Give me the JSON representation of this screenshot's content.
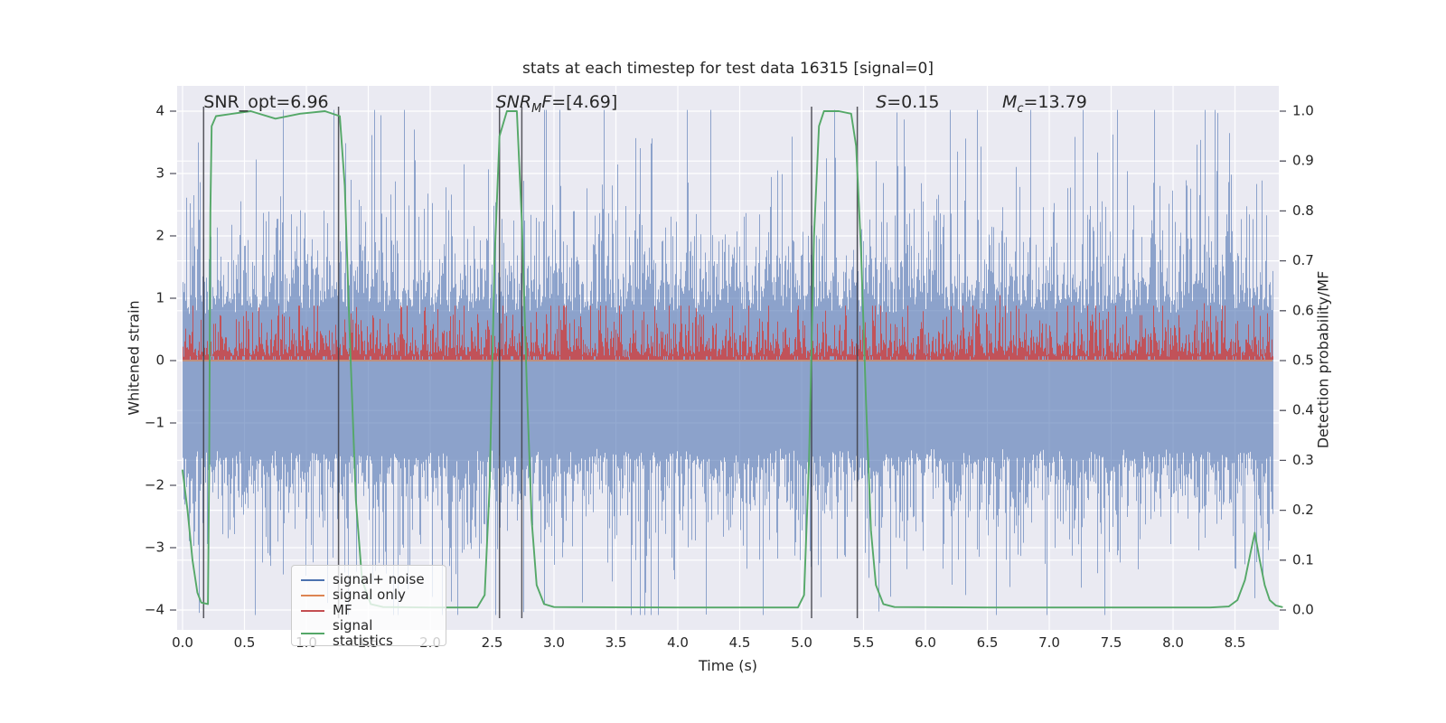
{
  "title": "stats at each timestep for test data 16315 [signal=0]",
  "stats": {
    "SNR_opt": 6.96,
    "SNR_MF": [
      4.69
    ],
    "S": 0.15,
    "M_c": 13.79
  },
  "chart_data": {
    "type": "line",
    "title": "stats at each timestep for test data 16315 [signal=0]",
    "xlabel": "Time (s)",
    "ylabel_left": "Whitened strain",
    "ylabel_right": "Detection probability/MF",
    "xlim": [
      0,
      8.85
    ],
    "ylim_left": [
      -4.35,
      4.35
    ],
    "ylim_right": [
      -0.05,
      1.05
    ],
    "xticks": [
      0.0,
      0.5,
      1.0,
      1.5,
      2.0,
      2.5,
      3.0,
      3.5,
      4.0,
      4.5,
      5.0,
      5.5,
      6.0,
      6.5,
      7.0,
      7.5,
      8.0,
      8.5
    ],
    "yticks_left": [
      4,
      3,
      2,
      1,
      0,
      -1,
      -2,
      -3,
      -4
    ],
    "yticks_right": [
      1.0,
      0.9,
      0.8,
      0.7,
      0.6,
      0.5,
      0.4,
      0.3,
      0.2,
      0.1,
      0.0
    ],
    "grid": true,
    "colors": {
      "axes_bg": "#eaeaf2",
      "grid": "#ffffff",
      "tick": "#555560",
      "text": "#262626"
    },
    "series": [
      {
        "name": "signal+ noise",
        "color": "#4c72b0",
        "style": "noise-band",
        "axis": "left",
        "envelope": {
          "seed": 13,
          "upper_solid": 0.85,
          "upper_tail_mean": 0.72,
          "upper_cap": 4.02,
          "lower_solid": -1.55,
          "lower_tail_mean": 0.62,
          "lower_cap": -4.08
        }
      },
      {
        "name": "signal only",
        "color": "#dd8452",
        "style": "flat-line",
        "axis": "left",
        "value": 0
      },
      {
        "name": "MF",
        "color": "#c44e52",
        "style": "noise-band",
        "axis": "right",
        "envelope": {
          "seed": 77,
          "base": 0.015,
          "floor": 0.1,
          "tail_mean": 0.26,
          "cap": 0.88,
          "outliers": [
            [
              6.6,
              1.05
            ],
            [
              8.25,
              0.92
            ],
            [
              5.35,
              0.88
            ]
          ]
        }
      },
      {
        "name": "signal statistics",
        "color": "#55a868",
        "style": "line",
        "axis": "right",
        "points": [
          [
            0,
            0.28
          ],
          [
            0.04,
            0.2
          ],
          [
            0.08,
            0.1
          ],
          [
            0.12,
            0.035
          ],
          [
            0.15,
            0.015
          ],
          [
            0.205,
            0.012
          ],
          [
            0.215,
            0.3
          ],
          [
            0.225,
            0.8
          ],
          [
            0.235,
            0.97
          ],
          [
            0.27,
            0.99
          ],
          [
            0.55,
            1.0
          ],
          [
            0.75,
            0.985
          ],
          [
            0.95,
            0.995
          ],
          [
            1.15,
            1.0
          ],
          [
            1.27,
            0.99
          ],
          [
            1.31,
            0.85
          ],
          [
            1.35,
            0.55
          ],
          [
            1.4,
            0.22
          ],
          [
            1.45,
            0.06
          ],
          [
            1.52,
            0.012
          ],
          [
            1.62,
            0.006
          ],
          [
            2.0,
            0.005
          ],
          [
            2.38,
            0.005
          ],
          [
            2.44,
            0.03
          ],
          [
            2.48,
            0.25
          ],
          [
            2.52,
            0.7
          ],
          [
            2.56,
            0.95
          ],
          [
            2.62,
            1.0
          ],
          [
            2.7,
            1.0
          ],
          [
            2.74,
            0.78
          ],
          [
            2.78,
            0.45
          ],
          [
            2.82,
            0.18
          ],
          [
            2.86,
            0.05
          ],
          [
            2.92,
            0.012
          ],
          [
            3.0,
            0.006
          ],
          [
            4.0,
            0.005
          ],
          [
            4.97,
            0.005
          ],
          [
            5.02,
            0.03
          ],
          [
            5.06,
            0.3
          ],
          [
            5.1,
            0.75
          ],
          [
            5.14,
            0.97
          ],
          [
            5.18,
            1.0
          ],
          [
            5.3,
            1.0
          ],
          [
            5.4,
            0.995
          ],
          [
            5.44,
            0.93
          ],
          [
            5.48,
            0.72
          ],
          [
            5.52,
            0.42
          ],
          [
            5.56,
            0.16
          ],
          [
            5.6,
            0.05
          ],
          [
            5.66,
            0.012
          ],
          [
            5.75,
            0.006
          ],
          [
            6.5,
            0.005
          ],
          [
            7.5,
            0.005
          ],
          [
            8.3,
            0.005
          ],
          [
            8.45,
            0.007
          ],
          [
            8.52,
            0.02
          ],
          [
            8.58,
            0.06
          ],
          [
            8.63,
            0.12
          ],
          [
            8.66,
            0.155
          ],
          [
            8.7,
            0.1
          ],
          [
            8.74,
            0.05
          ],
          [
            8.78,
            0.02
          ],
          [
            8.83,
            0.009
          ],
          [
            8.88,
            0.006
          ]
        ]
      }
    ],
    "vlines": {
      "x": [
        0.17,
        1.26,
        2.56,
        2.74,
        5.08,
        5.45
      ],
      "color": "#3c3c43"
    },
    "annotations": [
      {
        "name": "snr-opt",
        "x": 0.17,
        "parts": [
          {
            "t": "SNR_opt=6.96"
          }
        ]
      },
      {
        "name": "snr-mf",
        "x": 2.53,
        "parts": [
          {
            "t": "SNR",
            "i": true
          },
          {
            "t": "M",
            "i": true,
            "sub": true
          },
          {
            "t": "F",
            "i": true
          },
          {
            "t": "=[4.69]"
          }
        ]
      },
      {
        "name": "s-value",
        "x": 5.6,
        "parts": [
          {
            "t": "S",
            "i": true
          },
          {
            "t": "=0.15"
          }
        ]
      },
      {
        "name": "m-chirp",
        "x": 6.62,
        "parts": [
          {
            "t": "M",
            "i": true
          },
          {
            "t": "c",
            "i": true,
            "sub": true
          },
          {
            "t": "=13.79"
          }
        ]
      }
    ],
    "legend": {
      "position": "lower left",
      "entries": [
        "signal+ noise",
        "signal only",
        "MF",
        "signal statistics"
      ]
    }
  }
}
